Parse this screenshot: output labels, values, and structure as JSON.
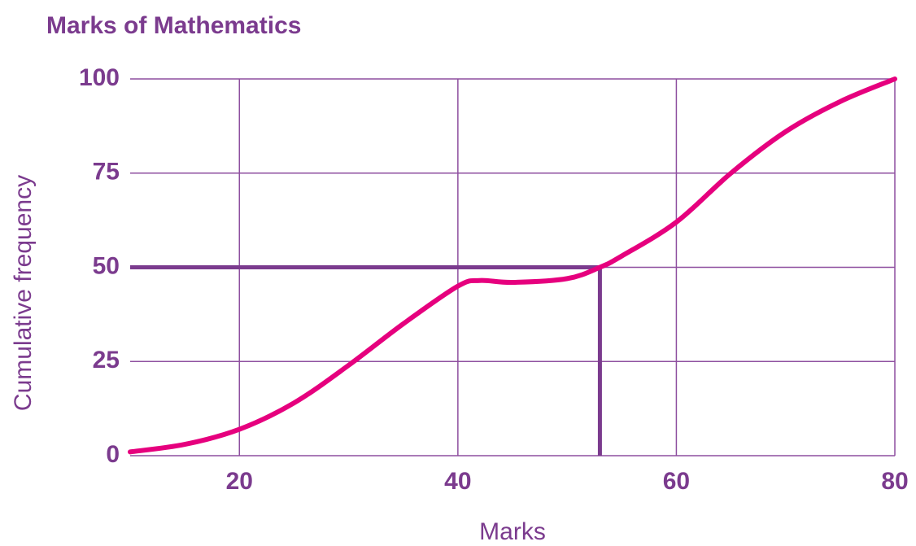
{
  "chart_data": {
    "type": "line",
    "title": "Marks of Mathematics",
    "x_label": "Marks",
    "y_label": "Cumulative frequency",
    "x": [
      10,
      15,
      20,
      25,
      30,
      35,
      40,
      42,
      45,
      50,
      53,
      55,
      60,
      65,
      70,
      75,
      80
    ],
    "series": [
      {
        "name": "Cumulative frequency",
        "color": "#e6007e",
        "values": [
          1,
          3,
          7,
          14,
          24,
          35,
          45,
          46.5,
          46,
          47,
          50,
          53,
          62,
          75,
          86,
          94,
          100
        ]
      }
    ],
    "xlim": [
      10,
      80
    ],
    "xticks": [
      20,
      40,
      60,
      80
    ],
    "ylim": [
      0,
      100
    ],
    "yticks": [
      0,
      25,
      50,
      75,
      100
    ],
    "grid": true,
    "reference": {
      "x": 53,
      "y": 50,
      "color": "#7b3b8e"
    }
  }
}
